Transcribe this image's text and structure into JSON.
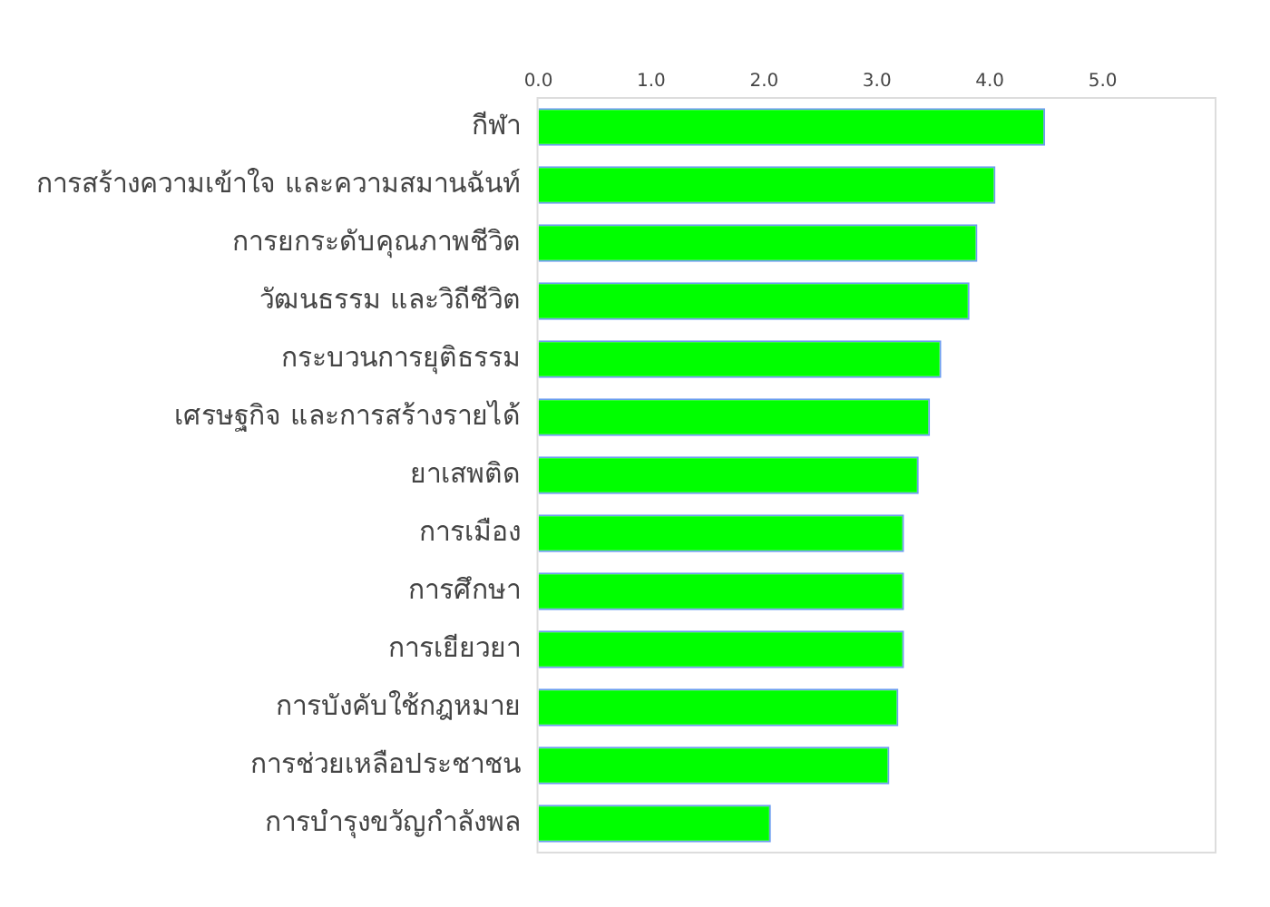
{
  "chart_data": {
    "type": "bar",
    "orientation": "horizontal",
    "categories": [
      "กีฬา",
      "การสร้างความเข้าใจ และความสมานฉันท์",
      "การยกระดับคุณภาพชีวิต",
      "วัฒนธรรม และวิถีชีวิต",
      "กระบวนการยุติธรรม",
      "เศรษฐกิจ และการสร้างรายได้",
      "ยาเสพติด",
      "การเมือง",
      "การศึกษา",
      "การเยียวยา",
      "การบังคับใช้กฎหมาย",
      "การช่วยเหลือประชาชน",
      "การบำรุงขวัญกำลังพล"
    ],
    "values": [
      4.49,
      4.05,
      3.89,
      3.82,
      3.57,
      3.47,
      3.37,
      3.24,
      3.24,
      3.24,
      3.19,
      3.11,
      2.06
    ],
    "color": "#00ff00",
    "xlim": [
      0,
      6
    ],
    "xticks": [
      {
        "value": 0,
        "label": "0.0"
      },
      {
        "value": 1,
        "label": "1.0"
      },
      {
        "value": 2,
        "label": "2.0"
      },
      {
        "value": 3,
        "label": "3.0"
      },
      {
        "value": 4,
        "label": "4.0"
      },
      {
        "value": 5,
        "label": "5.0"
      }
    ]
  }
}
